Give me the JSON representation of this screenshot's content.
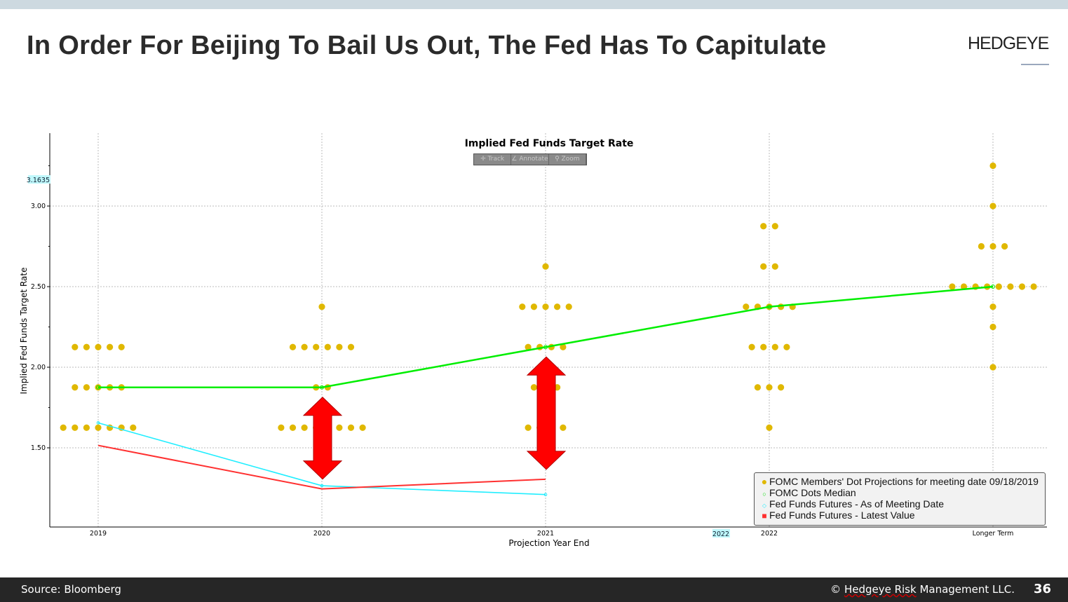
{
  "slide": {
    "title": "In Order For Beijing To Bail Us Out, The Fed Has To Capitulate",
    "logo": "HEDGEYE",
    "source": "Source: Bloomberg",
    "copyright_symbol": "©",
    "copyright_underlined": "Hedgeye Risk",
    "copyright_rest": " Management LLC.",
    "page_number": "36"
  },
  "toolbar": {
    "track": "✛ Track",
    "annotate": "∠ Annotate",
    "zoom": "⚲ Zoom"
  },
  "colors": {
    "dots": "#e0b800",
    "median": "#00ee00",
    "futures_meeting": "#22eeff",
    "futures_latest": "#ff3030",
    "arrow": "#ff0000"
  },
  "chart_data": {
    "type": "scatter",
    "title": "Implied Fed Funds Target Rate",
    "xlabel": "Projection Year End",
    "ylabel": "Implied Fed Funds Target Rate",
    "categories": [
      "2019",
      "2020",
      "2021",
      "2022",
      "Longer Term"
    ],
    "ylim": [
      1.0,
      3.45
    ],
    "yticks": [
      "1.50",
      "2.00",
      "2.50",
      "3.00"
    ],
    "ytick_values": [
      1.5,
      2.0,
      2.5,
      3.0
    ],
    "y_highlight_label": "3.1635",
    "x_highlight_label": "2022",
    "grid": true,
    "legend_position": "bottom-right",
    "legend": [
      "FOMC Members' Dot Projections for meeting date 09/18/2019",
      "FOMC Dots Median",
      "Fed Funds Futures - As of Meeting Date",
      "Fed Funds Futures - Latest Value"
    ],
    "dots": [
      [
        {
          "rate": 2.125,
          "count": 5
        },
        {
          "rate": 1.875,
          "count": 5
        },
        {
          "rate": 1.625,
          "count": 7
        }
      ],
      [
        {
          "rate": 2.375,
          "count": 1
        },
        {
          "rate": 2.125,
          "count": 6
        },
        {
          "rate": 1.875,
          "count": 2
        },
        {
          "rate": 1.625,
          "count": 8
        }
      ],
      [
        {
          "rate": 2.625,
          "count": 1
        },
        {
          "rate": 2.375,
          "count": 5
        },
        {
          "rate": 2.125,
          "count": 4
        },
        {
          "rate": 1.875,
          "count": 3
        },
        {
          "rate": 1.625,
          "count": 4
        }
      ],
      [
        {
          "rate": 2.875,
          "count": 2
        },
        {
          "rate": 2.625,
          "count": 2
        },
        {
          "rate": 2.375,
          "count": 5
        },
        {
          "rate": 2.125,
          "count": 4
        },
        {
          "rate": 1.875,
          "count": 3
        },
        {
          "rate": 1.625,
          "count": 1
        }
      ],
      [
        {
          "rate": 3.25,
          "count": 1
        },
        {
          "rate": 3.0,
          "count": 1
        },
        {
          "rate": 2.75,
          "count": 3
        },
        {
          "rate": 2.5,
          "count": 8
        },
        {
          "rate": 2.375,
          "count": 1
        },
        {
          "rate": 2.25,
          "count": 1
        },
        {
          "rate": 2.0,
          "count": 1
        }
      ]
    ],
    "series": [
      {
        "name": "FOMC Dots Median",
        "values": [
          1.875,
          1.875,
          2.125,
          2.375,
          2.5
        ]
      },
      {
        "name": "Fed Funds Futures - As of Meeting Date",
        "values": [
          1.655,
          1.265,
          1.21
        ]
      },
      {
        "name": "Fed Funds Futures - Latest Value",
        "values": [
          1.515,
          1.245,
          1.305
        ]
      }
    ],
    "annotations": [
      {
        "type": "double-arrow",
        "category": "2020",
        "from": 1.245,
        "to": 1.875
      },
      {
        "type": "double-arrow",
        "category": "2021",
        "from": 1.305,
        "to": 2.125
      }
    ]
  }
}
